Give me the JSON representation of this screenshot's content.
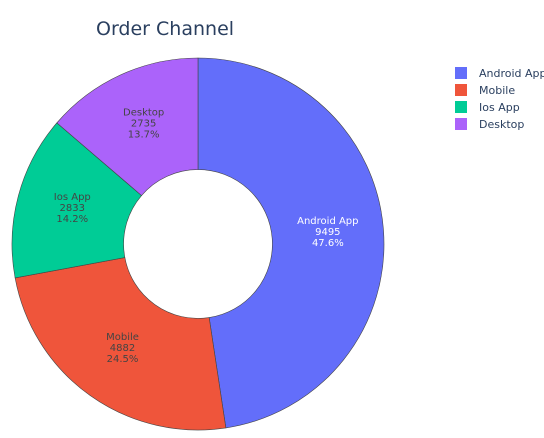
{
  "chart_data": {
    "type": "pie",
    "hole": 0.4,
    "title": "Order Channel",
    "categories": [
      "Android App",
      "Mobile",
      "Ios App",
      "Desktop"
    ],
    "values": [
      9495,
      4882,
      2833,
      2735
    ],
    "percent_labels": [
      "47.6%",
      "24.5%",
      "14.2%",
      "13.7%"
    ],
    "value_labels": [
      "9495",
      "4882",
      "2833",
      "2735"
    ],
    "colors": [
      "#636efa",
      "#ef553b",
      "#00cc96",
      "#ab63fa"
    ],
    "label_colors": [
      "#ffffff",
      "#444444",
      "#444444",
      "#444444"
    ],
    "legend": {
      "placement": "top-right",
      "items": [
        "Android App",
        "Mobile",
        "Ios App",
        "Desktop"
      ]
    }
  }
}
